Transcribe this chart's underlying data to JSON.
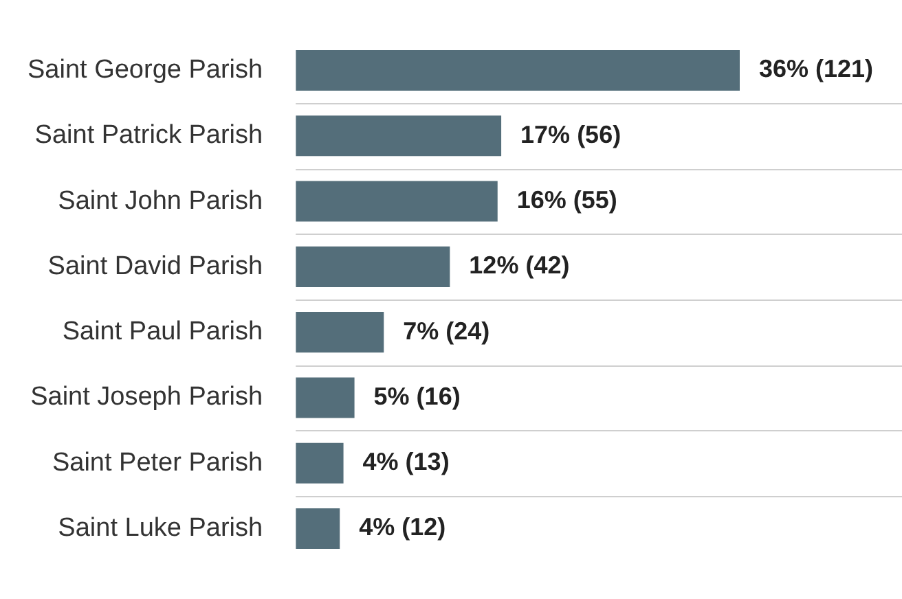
{
  "chart_data": {
    "type": "bar",
    "orientation": "horizontal",
    "categories": [
      "Saint George Parish",
      "Saint Patrick Parish",
      "Saint John Parish",
      "Saint David Parish",
      "Saint Paul Parish",
      "Saint Joseph Parish",
      "Saint Peter Parish",
      "Saint Luke Parish"
    ],
    "values": [
      121,
      56,
      55,
      42,
      24,
      16,
      13,
      12
    ],
    "value_labels": [
      "36% (121)",
      "17% (56)",
      "16% (55)",
      "12% (42)",
      "7% (24)",
      "5% (16)",
      "4% (13)",
      "4% (12)"
    ],
    "color": "#546e7a",
    "grid": "y"
  }
}
